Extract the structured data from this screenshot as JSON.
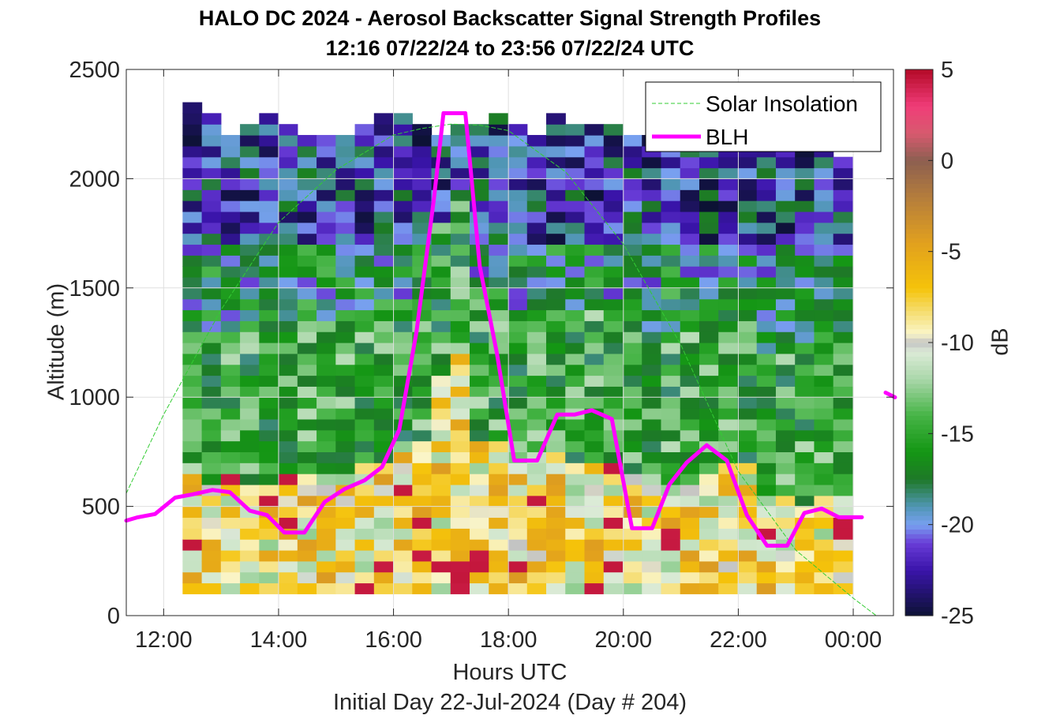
{
  "title": {
    "line1": "HALO DC 2024 - Aerosol Backscatter Signal Strength Profiles",
    "line2": "12:16 07/22/24 to 23:56 07/22/24  UTC"
  },
  "subtitle": "Initial Day 22-Jul-2024 (Day # 204)",
  "colorbar_label": "dB",
  "chart_data": {
    "type": "heatmap",
    "title": "HALO DC 2024 - Aerosol Backscatter Signal Strength Profiles",
    "xlabel": "Hours UTC",
    "ylabel": "Altitude (m)",
    "xlim": [
      11.35,
      24.7
    ],
    "ylim": [
      0,
      2500
    ],
    "x_ticks": [
      12,
      14,
      16,
      18,
      20,
      22,
      24
    ],
    "x_tick_labels": [
      "12:00",
      "14:00",
      "16:00",
      "18:00",
      "20:00",
      "22:00",
      "00:00"
    ],
    "y_ticks": [
      0,
      500,
      1000,
      1500,
      2000,
      2500
    ],
    "y_tick_labels": [
      "0",
      "500",
      "1000",
      "1500",
      "2000",
      "2500"
    ],
    "grid": true,
    "legend_position": "top-right",
    "colorbar": {
      "label": "dB",
      "range": [
        -25,
        5
      ],
      "ticks": [
        5,
        0,
        -5,
        -10,
        -15,
        -20,
        -25
      ],
      "tick_labels": [
        "5",
        "0",
        "-5",
        "-10",
        "-15",
        "-20",
        "-25"
      ]
    },
    "heatmap": {
      "start_hour": 12.33,
      "column_width_hours": 0.333,
      "columns": 35,
      "bottom_m": 100,
      "cell_height_m": 50,
      "top_m": 2500,
      "cloud_top_m": [
        2350,
        2300,
        2200,
        2250,
        2300,
        2250,
        2200,
        2200,
        2200,
        2250,
        2300,
        2300,
        2250,
        2200,
        2250,
        2250,
        2300,
        2250,
        2200,
        2300,
        2250,
        2250,
        2250,
        2200,
        2200,
        2250,
        2250,
        2250,
        2200,
        2250,
        2300,
        2250,
        2200,
        2250,
        2100
      ],
      "aerosol_top_m": [
        700,
        580,
        620,
        580,
        600,
        640,
        640,
        650,
        650,
        660,
        700,
        720,
        800,
        1100,
        1200,
        800,
        760,
        700,
        720,
        720,
        700,
        680,
        700,
        640,
        560,
        560,
        560,
        620,
        680,
        660,
        500,
        520,
        500,
        520,
        520
      ]
    },
    "series": [
      {
        "name": "Solar Insolation",
        "style": "dashed",
        "color": "#33cc33",
        "x": [
          11.35,
          12,
          13,
          14,
          15,
          16,
          16.5,
          17,
          17.5,
          18,
          19,
          20,
          21,
          22,
          23,
          24,
          24.4,
          24.7
        ],
        "y": [
          560,
          920,
          1400,
          1800,
          2040,
          2200,
          2230,
          2250,
          2245,
          2220,
          2030,
          1700,
          1240,
          660,
          300,
          80,
          0,
          0
        ]
      },
      {
        "name": "BLH",
        "style": "solid",
        "color": "#ff00ff",
        "x": [
          11.35,
          11.55,
          11.85,
          12.2,
          12.5,
          12.85,
          13.15,
          13.5,
          13.8,
          14.1,
          14.45,
          14.8,
          15.15,
          15.5,
          15.8,
          16.1,
          16.4,
          16.7,
          16.87,
          17.0,
          17.1,
          17.25,
          17.5,
          17.8,
          18.1,
          18.3,
          18.5,
          18.85,
          19.15,
          19.45,
          19.8,
          20.15,
          20.5,
          20.8,
          21.1,
          21.45,
          21.8,
          22.15,
          22.5,
          22.85,
          23.15,
          23.45,
          23.75,
          24.15
        ],
        "y": [
          435,
          450,
          465,
          540,
          555,
          575,
          565,
          480,
          460,
          380,
          380,
          520,
          580,
          620,
          680,
          850,
          1300,
          1900,
          2300,
          2300,
          2300,
          2300,
          1600,
          1200,
          710,
          710,
          710,
          920,
          920,
          940,
          900,
          400,
          400,
          600,
          700,
          780,
          710,
          460,
          320,
          320,
          470,
          490,
          450,
          450
        ]
      }
    ],
    "annotations": [
      {
        "x": 24.7,
        "y": 1010,
        "color": "#ff00ff",
        "kind": "short-segment"
      }
    ]
  },
  "colors": {
    "blh": "#ff00ff",
    "solar": "#33cc33",
    "axis": "#262626",
    "grid": "#dfdfdf"
  }
}
